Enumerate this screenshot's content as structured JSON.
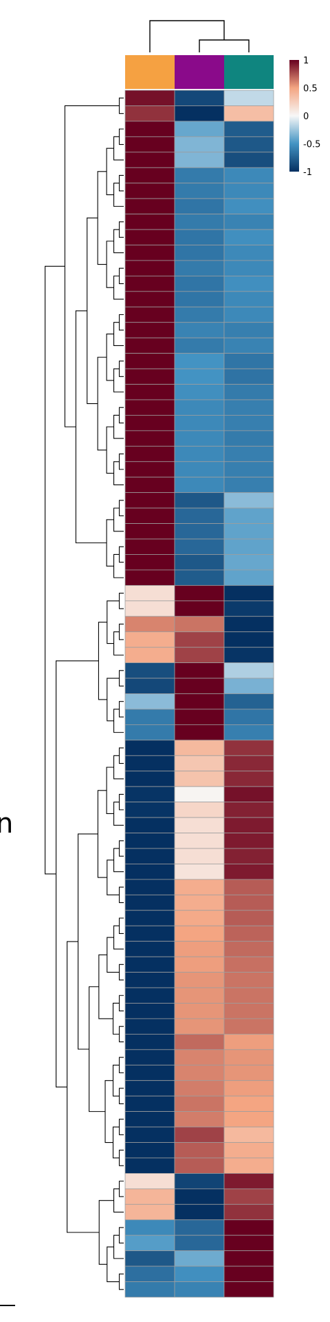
{
  "chart_data": {
    "type": "heatmap",
    "title": "",
    "xlabel": "",
    "ylabel": "",
    "columns": [
      {
        "annotation_color": "#f5a142"
      },
      {
        "annotation_color": "#8a0a8a"
      },
      {
        "annotation_color": "#0f857f"
      }
    ],
    "colorbar": {
      "ticks": [
        "1",
        "0.5",
        "0",
        "-0.5",
        "-1"
      ],
      "tick_values": [
        1,
        0.5,
        0,
        -0.5,
        -1
      ],
      "range": [
        -1,
        1
      ]
    },
    "row_dendrogram": true,
    "column_dendrogram": true,
    "values": [
      [
        0.95,
        -0.88,
        -0.15
      ],
      [
        0.85,
        -1.0,
        0.35
      ],
      [
        1.0,
        -0.4,
        -0.78
      ],
      [
        1.0,
        -0.33,
        -0.8
      ],
      [
        1.0,
        -0.33,
        -0.85
      ],
      [
        1.0,
        -0.62,
        -0.55
      ],
      [
        1.0,
        -0.62,
        -0.55
      ],
      [
        1.0,
        -0.65,
        -0.52
      ],
      [
        1.0,
        -0.62,
        -0.58
      ],
      [
        1.0,
        -0.65,
        -0.52
      ],
      [
        1.0,
        -0.65,
        -0.55
      ],
      [
        1.0,
        -0.62,
        -0.55
      ],
      [
        1.0,
        -0.65,
        -0.52
      ],
      [
        1.0,
        -0.65,
        -0.55
      ],
      [
        1.0,
        -0.62,
        -0.55
      ],
      [
        1.0,
        -0.58,
        -0.6
      ],
      [
        1.0,
        -0.62,
        -0.58
      ],
      [
        1.0,
        -0.5,
        -0.65
      ],
      [
        1.0,
        -0.5,
        -0.66
      ],
      [
        1.0,
        -0.52,
        -0.62
      ],
      [
        1.0,
        -0.55,
        -0.6
      ],
      [
        1.0,
        -0.55,
        -0.6
      ],
      [
        1.0,
        -0.55,
        -0.62
      ],
      [
        1.0,
        -0.55,
        -0.6
      ],
      [
        1.0,
        -0.55,
        -0.6
      ],
      [
        1.0,
        -0.55,
        -0.6
      ],
      [
        1.0,
        -0.8,
        -0.3
      ],
      [
        1.0,
        -0.72,
        -0.42
      ],
      [
        1.0,
        -0.72,
        -0.42
      ],
      [
        1.0,
        -0.72,
        -0.42
      ],
      [
        1.0,
        -0.8,
        -0.4
      ],
      [
        1.0,
        -0.78,
        -0.42
      ],
      [
        0.15,
        1.0,
        -1.0
      ],
      [
        0.15,
        1.0,
        -0.95
      ],
      [
        0.6,
        0.65,
        -1.0
      ],
      [
        0.45,
        0.8,
        -1.0
      ],
      [
        0.45,
        0.8,
        -0.98
      ],
      [
        -0.85,
        1.0,
        -0.2
      ],
      [
        -0.88,
        1.0,
        -0.35
      ],
      [
        -0.3,
        1.0,
        -0.75
      ],
      [
        -0.62,
        1.0,
        -0.65
      ],
      [
        -0.62,
        1.0,
        -0.6
      ],
      [
        -1.0,
        0.38,
        0.85
      ],
      [
        -1.0,
        0.3,
        0.88
      ],
      [
        -1.0,
        0.32,
        0.88
      ],
      [
        -0.98,
        0.02,
        0.95
      ],
      [
        -0.98,
        0.2,
        0.9
      ],
      [
        -1.0,
        0.15,
        0.92
      ],
      [
        -1.0,
        0.15,
        0.92
      ],
      [
        -1.0,
        0.15,
        0.9
      ],
      [
        -1.0,
        0.12,
        0.92
      ],
      [
        -1.0,
        0.45,
        0.72
      ],
      [
        -1.0,
        0.45,
        0.72
      ],
      [
        -1.0,
        0.47,
        0.72
      ],
      [
        -1.0,
        0.5,
        0.7
      ],
      [
        -1.0,
        0.52,
        0.68
      ],
      [
        -1.0,
        0.52,
        0.66
      ],
      [
        -1.0,
        0.55,
        0.65
      ],
      [
        -1.0,
        0.55,
        0.65
      ],
      [
        -1.0,
        0.55,
        0.65
      ],
      [
        -1.0,
        0.55,
        0.65
      ],
      [
        -1.0,
        0.68,
        0.52
      ],
      [
        -1.0,
        0.6,
        0.55
      ],
      [
        -1.0,
        0.6,
        0.55
      ],
      [
        -1.0,
        0.62,
        0.52
      ],
      [
        -1.0,
        0.65,
        0.5
      ],
      [
        -1.0,
        0.62,
        0.5
      ],
      [
        -1.0,
        0.8,
        0.38
      ],
      [
        -1.0,
        0.72,
        0.45
      ],
      [
        -1.0,
        0.72,
        0.45
      ],
      [
        0.15,
        -0.9,
        0.92
      ],
      [
        0.4,
        -1.0,
        0.8
      ],
      [
        0.4,
        -1.0,
        0.85
      ],
      [
        -0.55,
        -0.72,
        1.0
      ],
      [
        -0.45,
        -0.72,
        1.0
      ],
      [
        -0.8,
        -0.38,
        1.0
      ],
      [
        -0.68,
        -0.52,
        1.0
      ],
      [
        -0.62,
        -0.58,
        1.0
      ]
    ]
  },
  "page": {
    "edge_glyph": "n"
  }
}
